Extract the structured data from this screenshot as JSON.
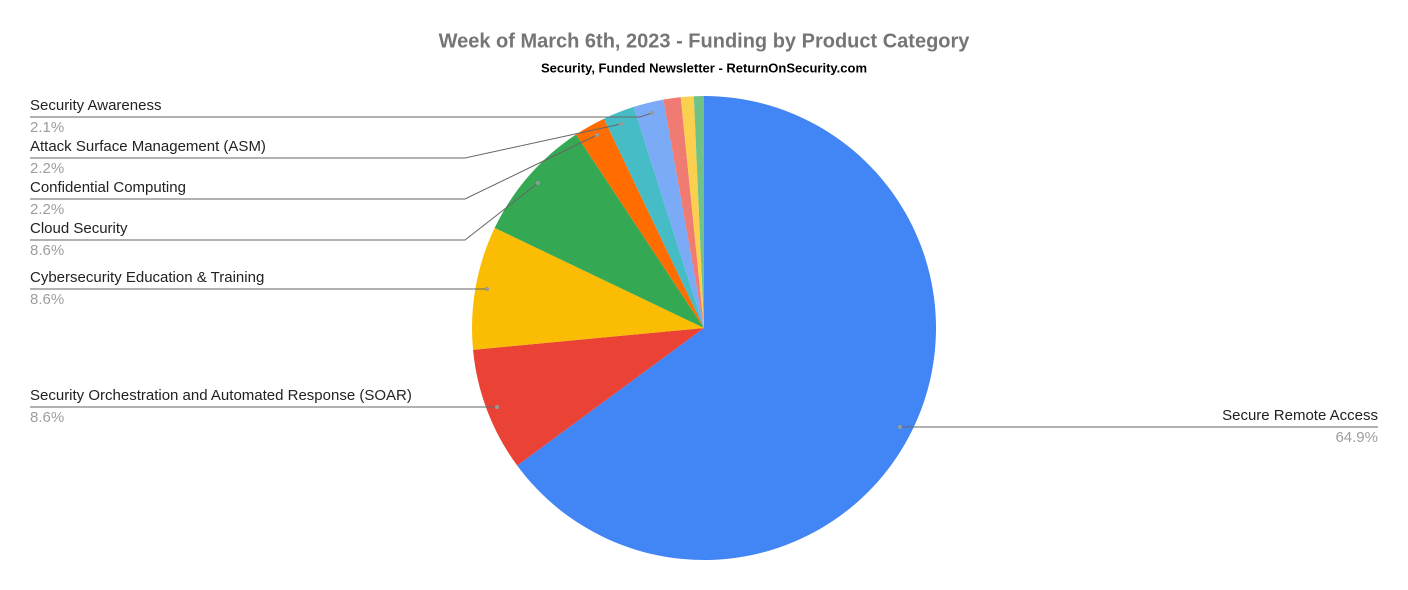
{
  "chart_data": {
    "type": "pie",
    "title": "Week of March 6th, 2023 - Funding by Product Category",
    "subtitle": "Security, Funded Newsletter - ReturnOnSecurity.com",
    "categories": [
      "Secure Remote Access",
      "Security Orchestration and Automated Response (SOAR)",
      "Cybersecurity Education & Training",
      "Cloud Security",
      "Confidential Computing",
      "Attack Surface Management (ASM)",
      "Security Awareness",
      null,
      null,
      null
    ],
    "values": [
      64.9,
      8.6,
      8.6,
      8.6,
      2.2,
      2.2,
      2.1,
      1.2,
      0.9,
      0.7
    ],
    "value_labels": [
      "64.9%",
      "8.6%",
      "8.6%",
      "8.6%",
      "2.2%",
      "2.2%",
      "2.1%",
      null,
      null,
      null
    ],
    "colors": [
      "#4285f4",
      "#ea4335",
      "#fbbc04",
      "#34a853",
      "#ff6d01",
      "#46bdc6",
      "#7baaf7",
      "#f07b72",
      "#fcd04f",
      "#71c287"
    ]
  }
}
